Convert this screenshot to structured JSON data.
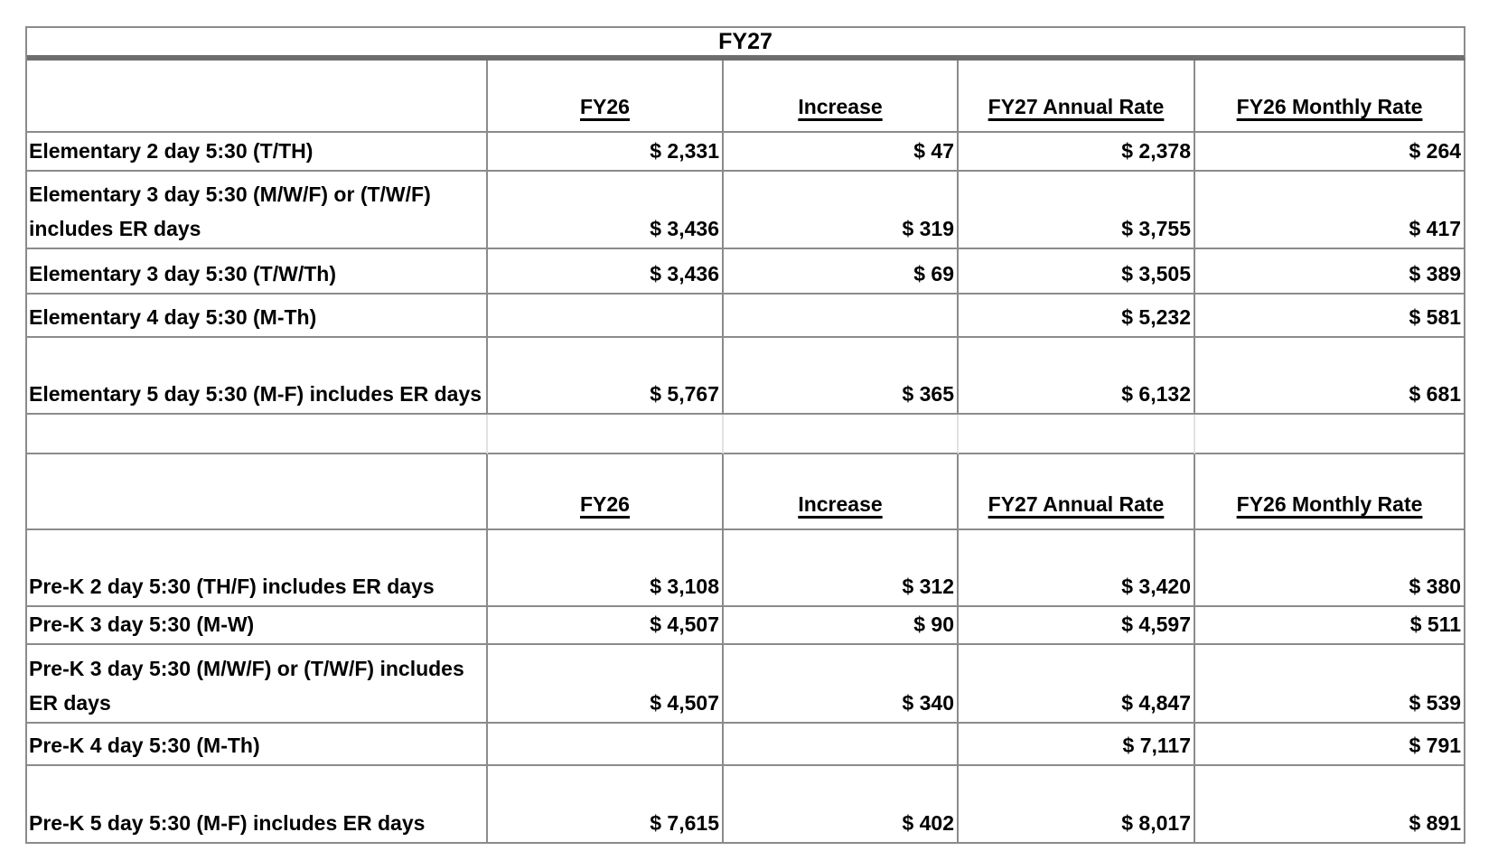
{
  "title": "FY27",
  "columns": {
    "label": "",
    "fy26": "FY26",
    "increase": "Increase",
    "fy27_annual": "FY27 Annual Rate",
    "fy26_monthly": "FY26 Monthly Rate"
  },
  "colors": {
    "border": "#8b8b8b",
    "thick_divider": "#6e6e6e",
    "spacer_gridline": "#e2e2e2",
    "text": "#000000",
    "background": "#ffffff"
  },
  "sections": [
    {
      "name": "elementary",
      "headers": {
        "fy26": "FY26",
        "increase": "Increase",
        "fy27_annual": "FY27 Annual Rate",
        "fy26_monthly": "FY26 Monthly Rate"
      },
      "rows": [
        {
          "label": "Elementary 2 day 5:30 (T/TH)",
          "fy26": "$ 2,331",
          "increase": "$ 47",
          "fy27_annual": "$ 2,378",
          "fy26_monthly": "$ 264"
        },
        {
          "label": "Elementary 3 day 5:30 (M/W/F) or (T/W/F) includes ER days",
          "fy26": "$ 3,436",
          "increase": "$ 319",
          "fy27_annual": "$ 3,755",
          "fy26_monthly": "$ 417"
        },
        {
          "label": "Elementary 3 day 5:30 (T/W/Th)",
          "fy26": "$ 3,436",
          "increase": "$ 69",
          "fy27_annual": "$ 3,505",
          "fy26_monthly": "$ 389"
        },
        {
          "label": "Elementary 4 day 5:30 (M-Th)",
          "fy26": "",
          "increase": "",
          "fy27_annual": "$ 5,232",
          "fy26_monthly": "$ 581"
        },
        {
          "label": "Elementary 5 day 5:30 (M-F) includes ER days",
          "fy26": "$ 5,767",
          "increase": "$ 365",
          "fy27_annual": "$ 6,132",
          "fy26_monthly": "$ 681"
        }
      ]
    },
    {
      "name": "pre-k",
      "headers": {
        "fy26": "FY26",
        "increase": "Increase",
        "fy27_annual": "FY27 Annual Rate",
        "fy26_monthly": "FY26 Monthly Rate"
      },
      "rows": [
        {
          "label": "Pre-K 2 day 5:30 (TH/F) includes ER days",
          "fy26": "$ 3,108",
          "increase": "$ 312",
          "fy27_annual": "$ 3,420",
          "fy26_monthly": "$ 380"
        },
        {
          "label": "Pre-K 3 day 5:30 (M-W)",
          "fy26": "$ 4,507",
          "increase": "$ 90",
          "fy27_annual": "$ 4,597",
          "fy26_monthly": "$ 511"
        },
        {
          "label": "Pre-K 3 day 5:30 (M/W/F) or (T/W/F) includes ER days",
          "fy26": "$ 4,507",
          "increase": "$ 340",
          "fy27_annual": "$ 4,847",
          "fy26_monthly": "$ 539"
        },
        {
          "label": "Pre-K 4 day 5:30 (M-Th)",
          "fy26": "",
          "increase": "",
          "fy27_annual": "$ 7,117",
          "fy26_monthly": "$ 791"
        },
        {
          "label": "Pre-K 5 day 5:30 (M-F) includes ER days",
          "fy26": "$ 7,615",
          "increase": "$ 402",
          "fy27_annual": "$ 8,017",
          "fy26_monthly": "$ 891"
        }
      ]
    }
  ]
}
